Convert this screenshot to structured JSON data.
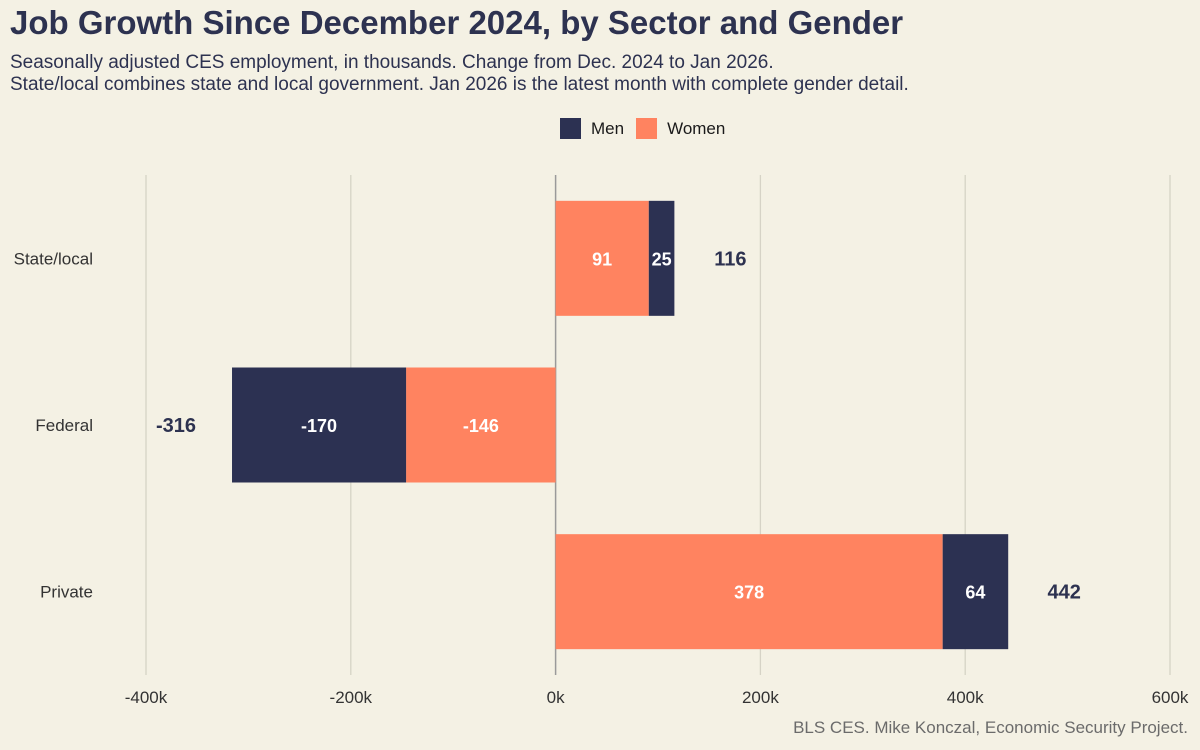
{
  "title": "Job Growth Since December 2024, by Sector and Gender",
  "subtitle_line1": "Seasonally adjusted CES employment, in thousands. Change from Dec. 2024 to Jan 2026.",
  "subtitle_line2": "State/local combines state and local government. Jan 2026 is the latest month with complete gender detail.",
  "caption": "BLS CES. Mike Konczal, Economic Security Project.",
  "colors": {
    "men": "#2c3152",
    "women": "#ff8360",
    "grid": "#d6d3c6",
    "zero_line": "#9a9a9a",
    "background": "#f4f1e4"
  },
  "chart_data": {
    "type": "bar",
    "orientation": "horizontal",
    "stacked": true,
    "categories": [
      "State/local",
      "Federal",
      "Private"
    ],
    "series": [
      {
        "name": "Women",
        "values": [
          91,
          -146,
          378
        ]
      },
      {
        "name": "Men",
        "values": [
          25,
          -170,
          64
        ]
      }
    ],
    "totals": [
      116,
      -316,
      442
    ],
    "xlim": [
      -400,
      600
    ],
    "xticks": [
      -400,
      -200,
      0,
      200,
      400,
      600
    ],
    "xtick_labels": [
      "-400k",
      "-200k",
      "0k",
      "200k",
      "400k",
      "600k"
    ],
    "legend": {
      "placement": "top",
      "entries": [
        "Men",
        "Women"
      ]
    },
    "grid": "vertical"
  }
}
